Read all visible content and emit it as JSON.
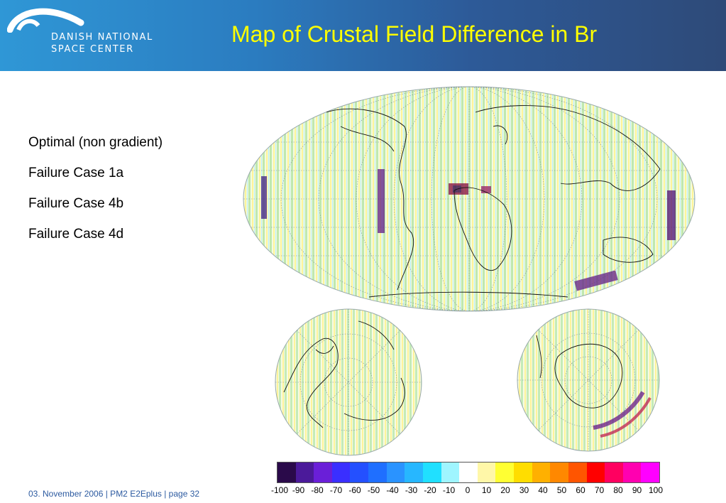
{
  "header": {
    "org_line1": "DANISH NATIONAL",
    "org_line2": "SPACE CENTER",
    "title": "Map of Crustal Field Difference in Br"
  },
  "items": [
    "Optimal (non gradient)",
    "Failure Case 1a",
    "Failure Case 4b",
    "Failure Case 4d"
  ],
  "colorbar": {
    "ticks": [
      "-100",
      "-90",
      "-80",
      "-70",
      "-60",
      "-50",
      "-40",
      "-30",
      "-20",
      "-10",
      "0",
      "10",
      "20",
      "30",
      "40",
      "50",
      "60",
      "70",
      "80",
      "90",
      "100"
    ],
    "colors": [
      "#2a0a4a",
      "#4b1a9a",
      "#6a1fd8",
      "#3a2fff",
      "#2450ff",
      "#1f6fff",
      "#2a93ff",
      "#27b7ff",
      "#20e0ff",
      "#9ff5ff",
      "#ffffff",
      "#fff7a8",
      "#ffff33",
      "#ffdd00",
      "#ffb000",
      "#ff8800",
      "#ff5500",
      "#ff0000",
      "#ff0060",
      "#ff00b0",
      "#ff00ff"
    ]
  },
  "footer": "03. November  2006 | PM2 E2Eplus | page 32"
}
